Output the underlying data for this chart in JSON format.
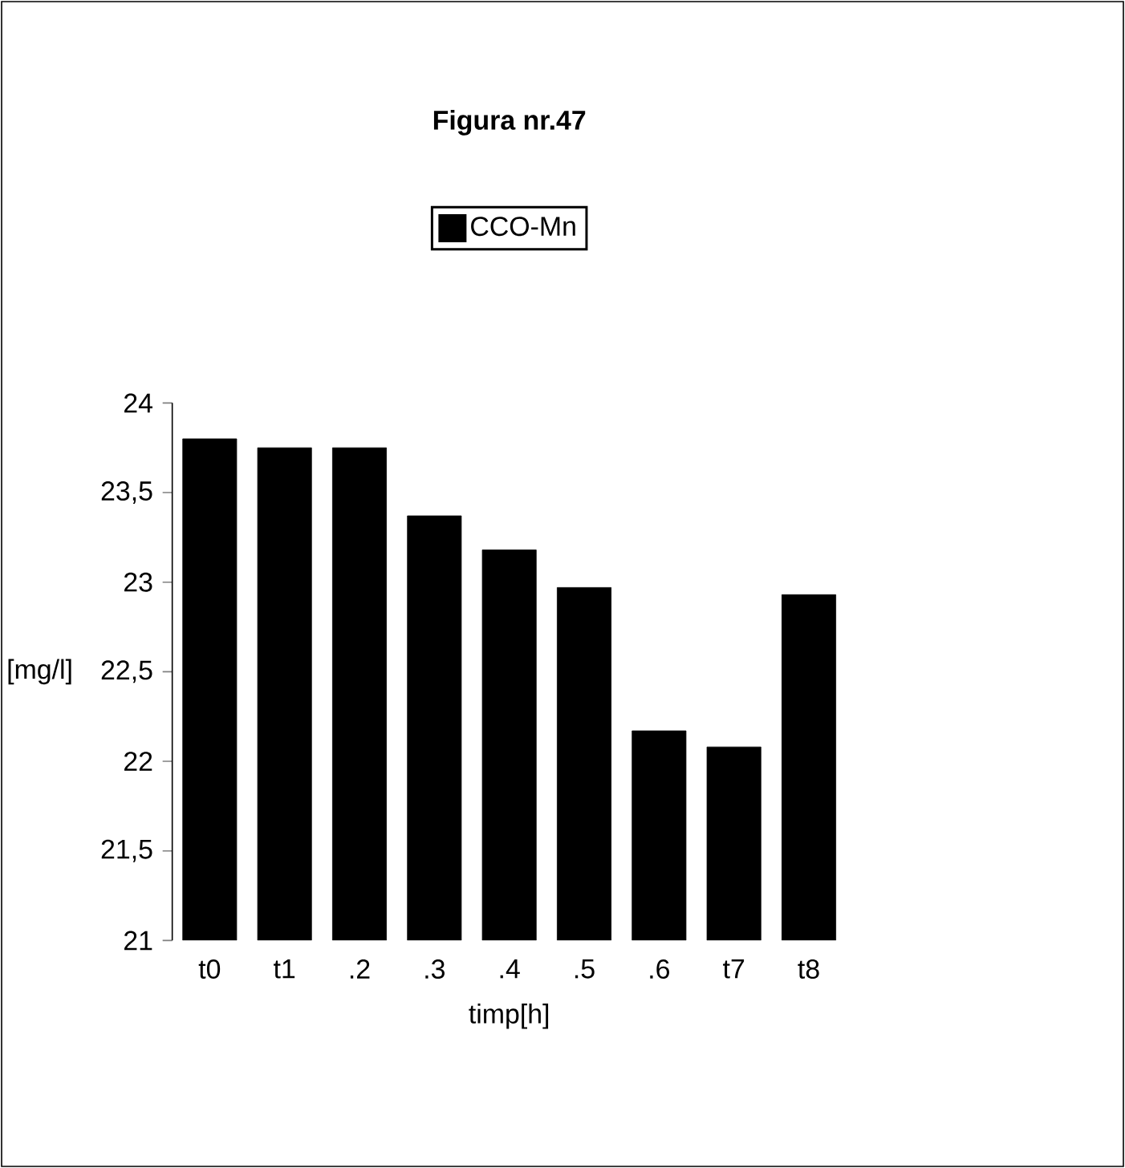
{
  "chart_data": {
    "type": "bar",
    "title": "Figura nr.47",
    "xlabel": "timp[h]",
    "ylabel": "[mg/l]",
    "categories": [
      "t0",
      "t1",
      ".2",
      ".3",
      ".4",
      ".5",
      ".6",
      "t7",
      "t8"
    ],
    "series": [
      {
        "name": "CCO-Mn",
        "color": "#000000",
        "values": [
          23.8,
          23.75,
          23.75,
          23.37,
          23.18,
          22.97,
          22.17,
          22.08,
          22.93
        ]
      }
    ],
    "ylim": [
      21,
      24
    ],
    "yticks": [
      21,
      {
        "value": 21.5,
        "label": "21,5"
      },
      22,
      {
        "value": 22.5,
        "label": "22,5"
      },
      23,
      {
        "value": 23.5,
        "label": "23,5"
      },
      24
    ],
    "legend": "top",
    "grid": false
  }
}
